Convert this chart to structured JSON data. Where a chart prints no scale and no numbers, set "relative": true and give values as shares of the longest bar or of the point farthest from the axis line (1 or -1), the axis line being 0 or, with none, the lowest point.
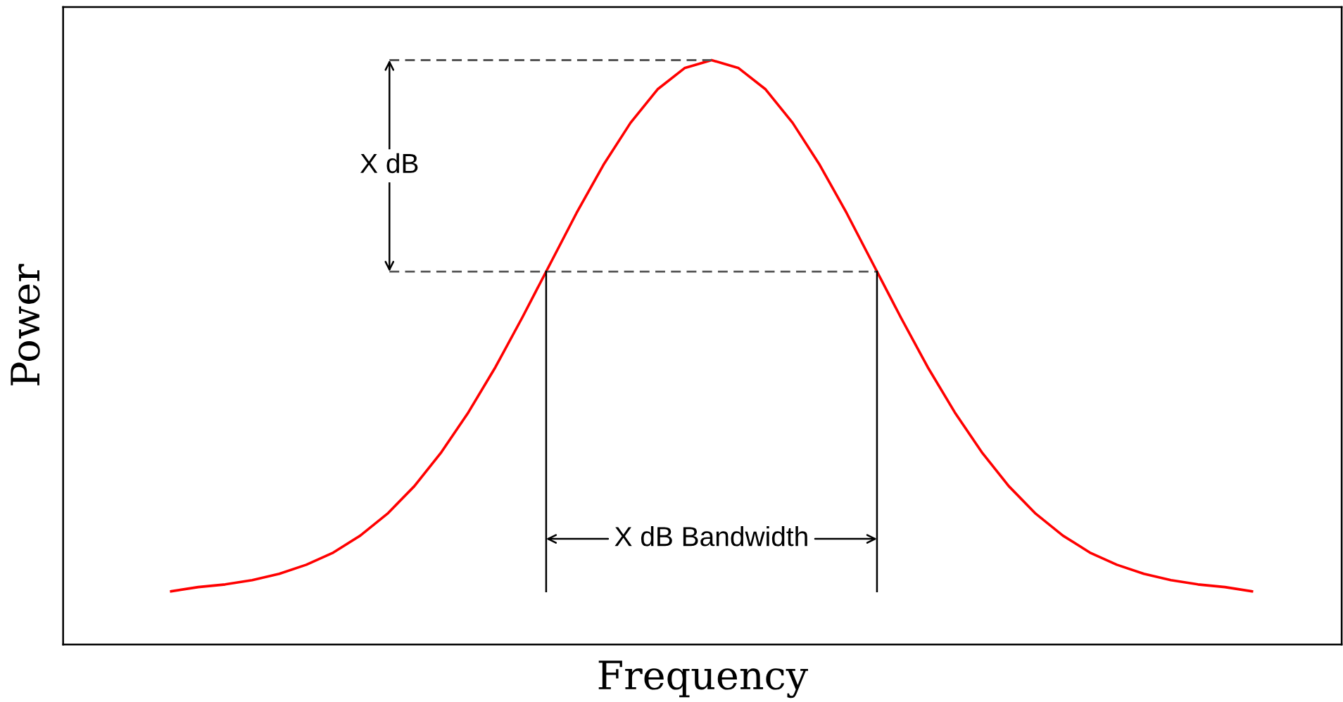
{
  "chart_data": {
    "type": "line",
    "relative": true,
    "xlabel": "Frequency",
    "ylabel": "Power",
    "tick_labels": false,
    "grid": false,
    "marker": "none",
    "line_style": "solid",
    "categories": [
      null,
      null,
      null,
      null,
      null,
      null,
      null,
      null,
      null,
      null,
      null,
      null,
      null,
      null,
      null,
      null,
      null,
      null,
      null,
      null,
      null,
      null,
      null,
      null,
      null,
      null,
      null,
      null,
      null,
      null,
      null,
      null,
      null,
      null,
      null,
      null,
      null,
      null,
      null,
      null,
      null
    ],
    "series": [
      {
        "color": "#ff0000",
        "values": [
          0,
          0.008,
          0.013,
          0.021,
          0.033,
          0.05,
          0.073,
          0.105,
          0.146,
          0.198,
          0.262,
          0.337,
          0.422,
          0.516,
          0.614,
          0.712,
          0.803,
          0.882,
          0.945,
          0.985,
          1,
          0.985,
          0.945,
          0.882,
          0.803,
          0.712,
          0.614,
          0.516,
          0.422,
          0.337,
          0.262,
          0.198,
          0.146,
          0.105,
          0.073,
          0.05,
          0.033,
          0.021,
          0.013,
          0.008,
          0
        ]
      }
    ],
    "ref_lines": [
      {
        "axis": "y",
        "value": 1,
        "line_style": "dashed",
        "color": "#555555"
      },
      {
        "axis": "y",
        "value": 0.602,
        "line_style": "dashed",
        "color": "#555555"
      }
    ],
    "annotations": [
      "X dB",
      "X dB Bandwidth"
    ]
  }
}
